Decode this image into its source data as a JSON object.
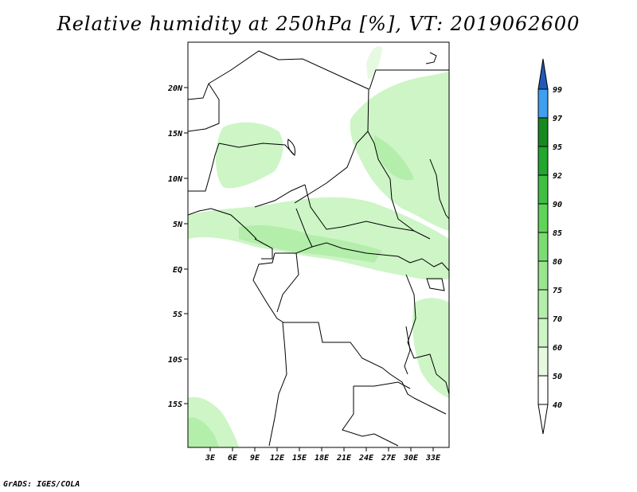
{
  "map": {
    "title": "Relative humidity at 250hPa [%], VT: 2019062600",
    "credit": "GrADS: IGES/COLA",
    "lat_labels": [
      "20N",
      "15N",
      "10N",
      "5N",
      "EQ",
      "5S",
      "10S",
      "15S"
    ],
    "lon_labels": [
      "3E",
      "6E",
      "9E",
      "12E",
      "15E",
      "18E",
      "21E",
      "24E",
      "27E",
      "30E",
      "33E"
    ]
  },
  "colorbar": {
    "levels": [
      "40",
      "50",
      "60",
      "70",
      "75",
      "80",
      "85",
      "90",
      "92",
      "95",
      "97",
      "99"
    ],
    "colors": [
      "#ffffff",
      "#e6fae2",
      "#cdf5c6",
      "#b3eeaa",
      "#99e68f",
      "#7bdc72",
      "#5fd459",
      "#3fc043",
      "#22a62e",
      "#158a1f",
      "#3f9ff0",
      "#2f73d9",
      "#2158b8"
    ]
  }
}
